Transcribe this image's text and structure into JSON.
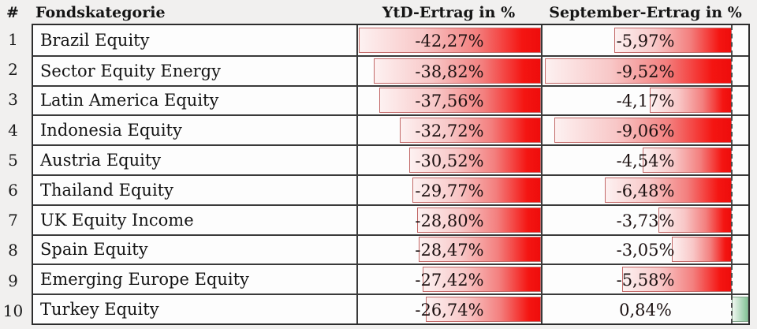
{
  "header": {
    "rank": "#",
    "category": "Fondskategorie",
    "ytd": "YtD-Ertrag in %",
    "september": "September-Ertrag in %"
  },
  "colors": {
    "page_background": "#f1f0ef",
    "cell_background": "#fdfdfd",
    "grid_border": "#333333",
    "text": "#1c1111",
    "negative_bar_gradient": [
      "#fdf1f1",
      "#f8c7c7",
      "#f37f7e",
      "#ee0d0c"
    ],
    "negative_bar_border": "#c26968",
    "positive_bar_gradient": [
      "#eff7f0",
      "#b5dbc0",
      "#84c497"
    ],
    "positive_bar_border": "#84a68c",
    "zero_axis": "#4c4c4c"
  },
  "chart_data": {
    "type": "bar",
    "orientation": "horizontal",
    "value_unit": "%",
    "number_format": "German decimal comma",
    "title": "",
    "categories": [
      "Brazil Equity",
      "Sector Equity Energy",
      "Latin America Equity",
      "Indonesia Equity",
      "Austria Equity",
      "Thailand Equity",
      "UK Equity Income",
      "Spain Equity",
      "Emerging Europe Equity",
      "Turkey Equity"
    ],
    "series": [
      {
        "name": "YtD-Ertrag in %",
        "key": "ytd",
        "axis_range": [
          -42.5,
          0
        ],
        "values": [
          -42.27,
          -38.82,
          -37.56,
          -32.72,
          -30.52,
          -29.77,
          -28.8,
          -28.47,
          -27.42,
          -26.74
        ]
      },
      {
        "name": "September-Ertrag in %",
        "key": "sept",
        "axis_range": [
          -9.65,
          0.85
        ],
        "values": [
          -5.97,
          -9.52,
          -4.17,
          -9.06,
          -4.54,
          -6.48,
          -3.73,
          -3.05,
          -5.58,
          0.84
        ]
      }
    ],
    "rows": [
      {
        "rank": "1",
        "category": "Brazil Equity",
        "ytd": -42.27,
        "ytd_label": "-42,27%",
        "sept": -5.97,
        "sept_label": "-5,97%"
      },
      {
        "rank": "2",
        "category": "Sector Equity Energy",
        "ytd": -38.82,
        "ytd_label": "-38,82%",
        "sept": -9.52,
        "sept_label": "-9,52%"
      },
      {
        "rank": "3",
        "category": "Latin America Equity",
        "ytd": -37.56,
        "ytd_label": "-37,56%",
        "sept": -4.17,
        "sept_label": "-4,17%"
      },
      {
        "rank": "4",
        "category": "Indonesia Equity",
        "ytd": -32.72,
        "ytd_label": "-32,72%",
        "sept": -9.06,
        "sept_label": "-9,06%"
      },
      {
        "rank": "5",
        "category": "Austria Equity",
        "ytd": -30.52,
        "ytd_label": "-30,52%",
        "sept": -4.54,
        "sept_label": "-4,54%"
      },
      {
        "rank": "6",
        "category": "Thailand Equity",
        "ytd": -29.77,
        "ytd_label": "-29,77%",
        "sept": -6.48,
        "sept_label": "-6,48%"
      },
      {
        "rank": "7",
        "category": "UK Equity Income",
        "ytd": -28.8,
        "ytd_label": "-28,80%",
        "sept": -3.73,
        "sept_label": "-3,73%"
      },
      {
        "rank": "8",
        "category": "Spain Equity",
        "ytd": -28.47,
        "ytd_label": "-28,47%",
        "sept": -3.05,
        "sept_label": "-3,05%"
      },
      {
        "rank": "9",
        "category": "Emerging Europe Equity",
        "ytd": -27.42,
        "ytd_label": "-27,42%",
        "sept": -5.58,
        "sept_label": "-5,58%"
      },
      {
        "rank": "10",
        "category": "Turkey Equity",
        "ytd": -26.74,
        "ytd_label": "-26,74%",
        "sept": 0.84,
        "sept_label": "0,84%"
      }
    ]
  }
}
